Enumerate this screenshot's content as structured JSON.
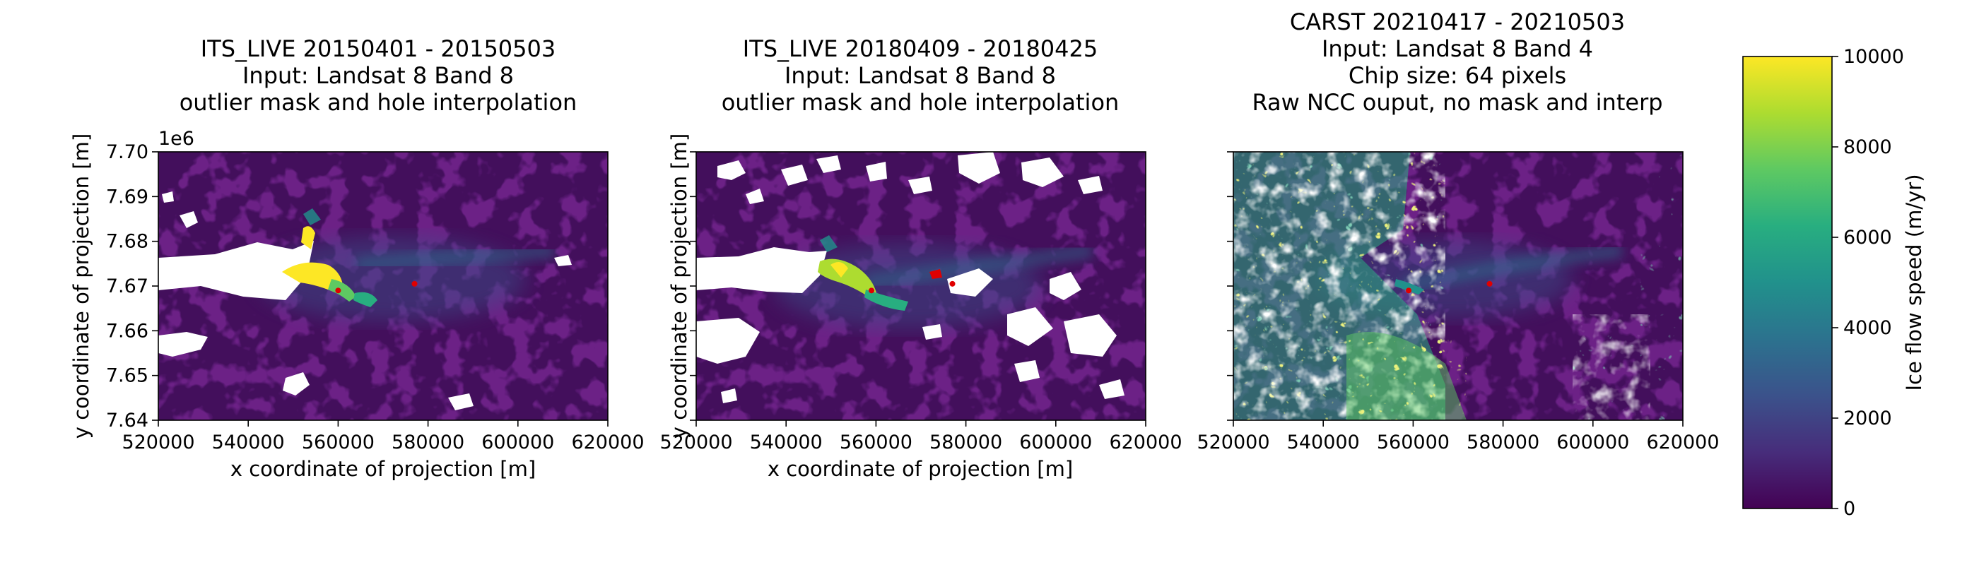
{
  "figure": {
    "colorbar": {
      "label": "Ice flow speed (m/yr)",
      "min": 0,
      "max": 10000,
      "ticks": [
        "0",
        "2000",
        "4000",
        "6000",
        "8000",
        "10000"
      ],
      "colormap": [
        "#440154",
        "#472d7b",
        "#3b528b",
        "#2c728e",
        "#21918c",
        "#28ae80",
        "#5ec962",
        "#addc30",
        "#fde725"
      ]
    }
  },
  "chart_data": [
    {
      "type": "heatmap",
      "title_lines": [
        "ITS_LIVE 20150401 - 20150503",
        "Input: Landsat 8 Band 8",
        "outlier mask and hole interpolation"
      ],
      "xlabel": "x coordinate of projection [m]",
      "ylabel": "y coordinate of projection [m]",
      "xlim": [
        520000,
        620000
      ],
      "ylim": [
        7640000,
        7700000
      ],
      "y_offset_label": "1e6",
      "xticks": [
        520000,
        540000,
        560000,
        580000,
        600000,
        620000
      ],
      "yticks": [
        7.64,
        7.65,
        7.66,
        7.67,
        7.68,
        7.69,
        7.7
      ],
      "xtick_labels": [
        "520000",
        "540000",
        "560000",
        "580000",
        "600000",
        "620000"
      ],
      "ytick_labels": [
        "7.64",
        "7.65",
        "7.66",
        "7.67",
        "7.68",
        "7.69",
        "7.70"
      ],
      "markers": [
        {
          "x": 560000,
          "y": 7669000,
          "color": "#e00000"
        },
        {
          "x": 577000,
          "y": 7670500,
          "color": "#e00000"
        }
      ]
    },
    {
      "type": "heatmap",
      "title_lines": [
        "ITS_LIVE 20180409 - 20180425",
        "Input: Landsat 8 Band 8",
        "outlier mask and hole interpolation"
      ],
      "xlabel": "x coordinate of projection [m]",
      "ylabel": "y coordinate of projection [m]",
      "xlim": [
        520000,
        620000
      ],
      "ylim": [
        7640000,
        7700000
      ],
      "xticks": [
        520000,
        540000,
        560000,
        580000,
        600000,
        620000
      ],
      "xtick_labels": [
        "520000",
        "540000",
        "560000",
        "580000",
        "600000",
        "620000"
      ],
      "markers": [
        {
          "x": 559000,
          "y": 7669000,
          "color": "#e00000"
        },
        {
          "x": 577000,
          "y": 7670500,
          "color": "#e00000"
        }
      ]
    },
    {
      "type": "heatmap",
      "title_lines": [
        "CARST 20210417 - 20210503",
        "Input: Landsat 8 Band 4",
        "Chip size: 64 pixels",
        "Raw NCC ouput, no mask and interp"
      ],
      "xlim": [
        520000,
        620000
      ],
      "ylim": [
        7640000,
        7700000
      ],
      "xticks": [
        520000,
        540000,
        560000,
        580000,
        600000,
        620000
      ],
      "xtick_labels": [
        "520000",
        "540000",
        "560000",
        "580000",
        "600000",
        "620000"
      ],
      "markers": [
        {
          "x": 559000,
          "y": 7669000,
          "color": "#e00000"
        },
        {
          "x": 577000,
          "y": 7670500,
          "color": "#e00000"
        }
      ]
    }
  ]
}
